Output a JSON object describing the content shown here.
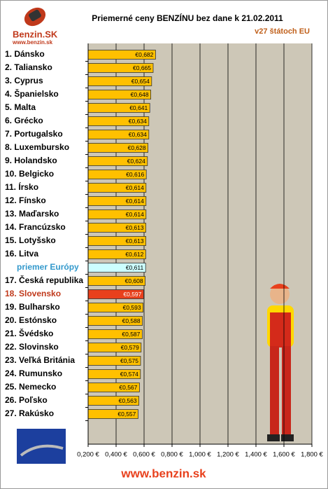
{
  "chart_data": {
    "type": "barh",
    "title": "Priemerné ceny BENZÍNU bez dane k 21.02.2011",
    "subtitle": "v27 štátoch EU",
    "logo": "Benzin.SK",
    "logo_url": "www.benzin.sk",
    "footer": "www.benzin.sk",
    "categories": [
      "1. Dánsko",
      "2. Taliansko",
      "3. Cyprus",
      "4. Španielsko",
      "5. Malta",
      "6. Grécko",
      "7. Portugalsko",
      "8. Luxembursko",
      "9. Holandsko",
      "10. Belgicko",
      "11. Írsko",
      "12. Fínsko",
      "13. Maďarsko",
      "14. Francúzsko",
      "15. Lotyšsko",
      "16. Litva",
      "priemer Európy",
      "17. Česká republika",
      "18. Slovensko",
      "19. Bulharsko",
      "20. Estónsko",
      "21. Švédsko",
      "22. Slovinsko",
      "23. Veľká Británia",
      "24. Rumunsko",
      "25. Nemecko",
      "26. Poľsko",
      "27. Rakúsko"
    ],
    "values": [
      0.682,
      0.665,
      0.654,
      0.648,
      0.641,
      0.634,
      0.634,
      0.628,
      0.624,
      0.616,
      0.614,
      0.614,
      0.614,
      0.613,
      0.613,
      0.612,
      0.611,
      0.608,
      0.597,
      0.593,
      0.588,
      0.587,
      0.579,
      0.575,
      0.574,
      0.567,
      0.563,
      0.557
    ],
    "value_labels": [
      "€0,682",
      "€0,665",
      "€0,654",
      "€0,648",
      "€0,641",
      "€0,634",
      "€0,634",
      "€0,628",
      "€0,624",
      "€0,616",
      "€0,614",
      "€0,614",
      "€0,614",
      "€0,613",
      "€0,613",
      "€0,612",
      "€0,611",
      "€0,608",
      "€0,597",
      "€0,593",
      "€0,588",
      "€0,587",
      "€0,579",
      "€0,575",
      "€0,574",
      "€0,567",
      "€0,563",
      "€0,557"
    ],
    "bar_colors": [
      "#ffc000",
      "#ffc000",
      "#ffc000",
      "#ffc000",
      "#ffc000",
      "#ffc000",
      "#ffc000",
      "#ffc000",
      "#ffc000",
      "#ffc000",
      "#ffc000",
      "#ffc000",
      "#ffc000",
      "#ffc000",
      "#ffc000",
      "#ffc000",
      "#ccffff",
      "#ffc000",
      "#e8401c",
      "#ffc000",
      "#ffc000",
      "#ffc000",
      "#ffc000",
      "#ffc000",
      "#ffc000",
      "#ffc000",
      "#ffc000",
      "#ffc000"
    ],
    "label_colors": [
      "#000000",
      "#000000",
      "#000000",
      "#000000",
      "#000000",
      "#000000",
      "#000000",
      "#000000",
      "#000000",
      "#000000",
      "#000000",
      "#000000",
      "#000000",
      "#000000",
      "#000000",
      "#000000",
      "#3399cc",
      "#000000",
      "#c0391b",
      "#000000",
      "#000000",
      "#000000",
      "#000000",
      "#000000",
      "#000000",
      "#000000",
      "#000000",
      "#000000"
    ],
    "xlim": [
      0.2,
      1.8
    ],
    "xticks": [
      {
        "value": 0.2,
        "label": "0,200 €"
      },
      {
        "value": 0.4,
        "label": "0,400 €"
      },
      {
        "value": 0.6,
        "label": "0,600 €"
      },
      {
        "value": 0.8,
        "label": "0,800 €"
      },
      {
        "value": 1.0,
        "label": "1,000 €"
      },
      {
        "value": 1.2,
        "label": "1,200 €"
      },
      {
        "value": 1.4,
        "label": "1,400 €"
      },
      {
        "value": 1.6,
        "label": "1,600 €"
      },
      {
        "value": 1.8,
        "label": "1,800 €"
      }
    ],
    "grid": true
  }
}
